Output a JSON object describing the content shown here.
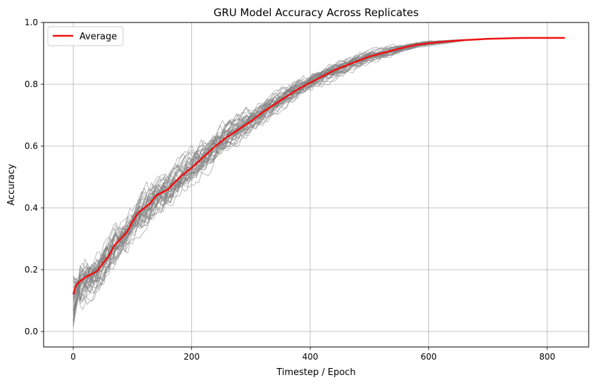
{
  "chart_data": {
    "type": "line",
    "title": "GRU Model Accuracy Across Replicates",
    "xlabel": "Timestep / Epoch",
    "ylabel": "Accuracy",
    "xlim": [
      -50,
      870
    ],
    "ylim": [
      -0.05,
      1.0
    ],
    "xticks": [
      0,
      200,
      400,
      600,
      800
    ],
    "xtick_labels": [
      "0",
      "200",
      "400",
      "600",
      "800"
    ],
    "yticks": [
      0.0,
      0.2,
      0.4,
      0.6,
      0.8,
      1.0
    ],
    "ytick_labels": [
      "0.0",
      "0.2",
      "0.4",
      "0.6",
      "0.8",
      "1.0"
    ],
    "grid": true,
    "legend": {
      "placement": "top-left",
      "entries": [
        "Average"
      ]
    },
    "replicate_style": {
      "color": "#808080",
      "count": 40
    },
    "series": [
      {
        "name": "Average",
        "color": "#ee1111",
        "x": [
          0,
          5,
          10,
          20,
          30,
          40,
          50,
          60,
          70,
          80,
          90,
          100,
          110,
          120,
          130,
          140,
          150,
          160,
          170,
          180,
          200,
          220,
          240,
          260,
          280,
          300,
          320,
          340,
          360,
          380,
          400,
          420,
          440,
          460,
          480,
          500,
          520,
          540,
          560,
          580,
          600,
          620,
          640,
          660,
          680,
          700,
          720,
          740,
          760,
          780,
          800,
          830
        ],
        "values": [
          0.12,
          0.15,
          0.16,
          0.175,
          0.185,
          0.195,
          0.22,
          0.245,
          0.28,
          0.3,
          0.32,
          0.355,
          0.385,
          0.4,
          0.415,
          0.44,
          0.45,
          0.46,
          0.48,
          0.5,
          0.53,
          0.565,
          0.6,
          0.63,
          0.655,
          0.68,
          0.71,
          0.735,
          0.76,
          0.785,
          0.805,
          0.825,
          0.845,
          0.86,
          0.875,
          0.89,
          0.9,
          0.91,
          0.92,
          0.928,
          0.933,
          0.937,
          0.94,
          0.943,
          0.945,
          0.947,
          0.948,
          0.949,
          0.95,
          0.95,
          0.95,
          0.95
        ]
      }
    ]
  }
}
